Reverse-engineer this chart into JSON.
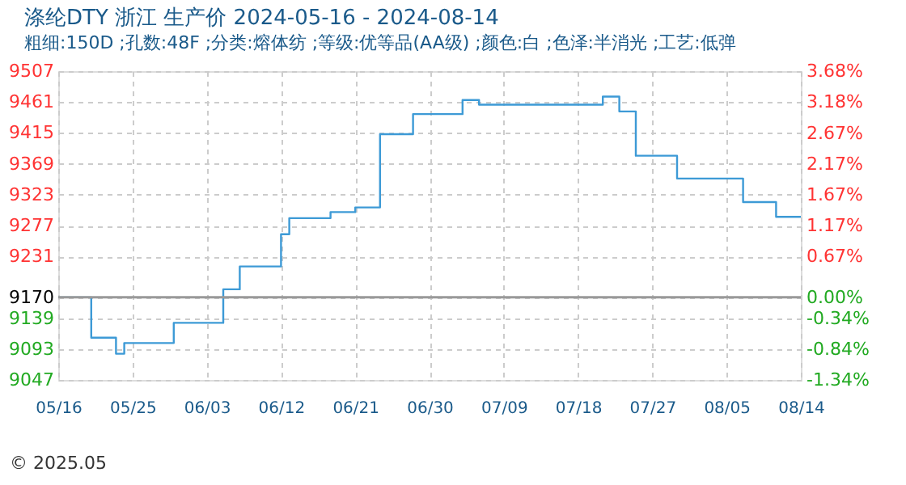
{
  "chart_data": {
    "type": "step",
    "title": "涤纶DTY 浙江 生产价 2024-05-16 - 2024-08-14",
    "subtitle": "粗细:150D ;孔数:48F ;分类:熔体纺 ;等级:优等品(AA级) ;颜色:白 ;色泽:半消光 ;工艺:低弹",
    "annotations": [
      "© 2025.05"
    ],
    "x": [
      "2024-05-16",
      "2024-05-19",
      "2024-05-20",
      "2024-05-22",
      "2024-05-23",
      "2024-05-24",
      "2024-05-29",
      "2024-05-30",
      "2024-06-03",
      "2024-06-05",
      "2024-06-06",
      "2024-06-07",
      "2024-06-11",
      "2024-06-12",
      "2024-06-13",
      "2024-06-17",
      "2024-06-18",
      "2024-06-20",
      "2024-06-21",
      "2024-06-23",
      "2024-06-24",
      "2024-06-26",
      "2024-06-28",
      "2024-07-03",
      "2024-07-04",
      "2024-07-05",
      "2024-07-06",
      "2024-07-20",
      "2024-07-21",
      "2024-07-22",
      "2024-07-23",
      "2024-07-24",
      "2024-07-25",
      "2024-07-28",
      "2024-07-30",
      "2024-08-04",
      "2024-08-07",
      "2024-08-10",
      "2024-08-11",
      "2024-08-14"
    ],
    "series": [
      {
        "color": "#3d9ad6",
        "values": [
          9170,
          9170,
          9110,
          9110,
          9086,
          9102,
          9102,
          9132,
          9132,
          9182,
          9182,
          9216,
          9216,
          9264,
          9288,
          9288,
          9297,
          9297,
          9304,
          9304,
          9413,
          9413,
          9443,
          9443,
          9464,
          9464,
          9457,
          9457,
          9469,
          9469,
          9447,
          9447,
          9381,
          9381,
          9347,
          9347,
          9312,
          9312,
          9290,
          9290
        ]
      }
    ],
    "xlim": [
      "2024-05-16",
      "2024-08-14"
    ],
    "xticks": [
      {
        "value": "2024-05-16",
        "label": "05/16"
      },
      {
        "value": "2024-05-25",
        "label": "05/25"
      },
      {
        "value": "2024-06-03",
        "label": "06/03"
      },
      {
        "value": "2024-06-12",
        "label": "06/12"
      },
      {
        "value": "2024-06-21",
        "label": "06/21"
      },
      {
        "value": "2024-06-30",
        "label": "06/30"
      },
      {
        "value": "2024-07-09",
        "label": "07/09"
      },
      {
        "value": "2024-07-18",
        "label": "07/18"
      },
      {
        "value": "2024-07-27",
        "label": "07/27"
      },
      {
        "value": "2024-08-05",
        "label": "08/05"
      },
      {
        "value": "2024-08-14",
        "label": "08/14"
      }
    ],
    "ylim": [
      9047,
      9507
    ],
    "yticks": [
      9047,
      9093,
      9139,
      9170,
      9231,
      9277,
      9323,
      9369,
      9415,
      9461,
      9507
    ],
    "y2lim": [
      -1.34,
      3.68
    ],
    "y2ticks": [
      {
        "value": -1.34,
        "label": "-1.34%"
      },
      {
        "value": -0.84,
        "label": "-0.84%"
      },
      {
        "value": -0.34,
        "label": "-0.34%"
      },
      {
        "value": 0,
        "label": "0.00%"
      },
      {
        "value": 0.67,
        "label": "0.67%"
      },
      {
        "value": 1.17,
        "label": "1.17%"
      },
      {
        "value": 1.67,
        "label": "1.67%"
      },
      {
        "value": 2.17,
        "label": "2.17%"
      },
      {
        "value": 2.67,
        "label": "2.67%"
      },
      {
        "value": 3.18,
        "label": "3.18%"
      },
      {
        "value": 3.68,
        "label": "3.68%"
      }
    ],
    "ref_lines": [
      {
        "axis": "y",
        "value": 9170,
        "color": "#999999",
        "line_style": "solid"
      }
    ],
    "grid": true,
    "line_style": "solid",
    "marker": "none"
  }
}
